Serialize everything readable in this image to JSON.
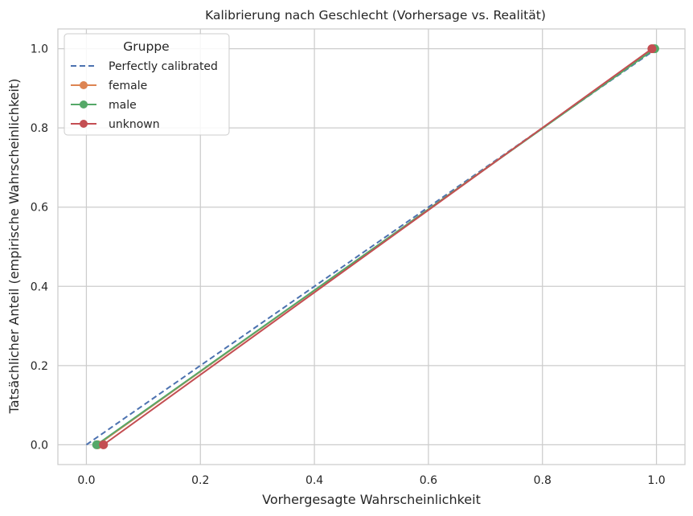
{
  "chart_data": {
    "type": "line",
    "title": "Kalibrierung nach Geschlecht (Vorhersage vs. Realität)",
    "xlabel": "Vorhergesagte Wahrscheinlichkeit",
    "ylabel": "Tatsächlicher Anteil (empirische Wahrscheinlichkeit)",
    "xlim": [
      -0.05,
      1.05
    ],
    "ylim": [
      -0.05,
      1.05
    ],
    "xticks": [
      0.0,
      0.2,
      0.4,
      0.6,
      0.8,
      1.0
    ],
    "yticks": [
      0.0,
      0.2,
      0.4,
      0.6,
      0.8,
      1.0
    ],
    "xtick_labels": [
      "0.0",
      "0.2",
      "0.4",
      "0.6",
      "0.8",
      "1.0"
    ],
    "ytick_labels": [
      "0.0",
      "0.2",
      "0.4",
      "0.6",
      "0.8",
      "1.0"
    ],
    "grid": true,
    "legend": {
      "title": "Gruppe",
      "placement": "top-left"
    },
    "series": [
      {
        "name": "Perfectly calibrated",
        "color": "#4c72b0",
        "style": "dashed",
        "marker": false,
        "x": [
          0.0,
          1.0
        ],
        "y": [
          0.0,
          1.0
        ]
      },
      {
        "name": "female",
        "color": "#dd8452",
        "style": "solid",
        "marker": true,
        "x": [
          0.02,
          0.995
        ],
        "y": [
          0.0,
          1.0
        ]
      },
      {
        "name": "male",
        "color": "#55a868",
        "style": "solid",
        "marker": true,
        "x": [
          0.018,
          0.997
        ],
        "y": [
          0.0,
          1.0
        ]
      },
      {
        "name": "unknown",
        "color": "#c44e52",
        "style": "solid",
        "marker": true,
        "x": [
          0.03,
          0.992
        ],
        "y": [
          0.0,
          1.0
        ]
      }
    ]
  }
}
